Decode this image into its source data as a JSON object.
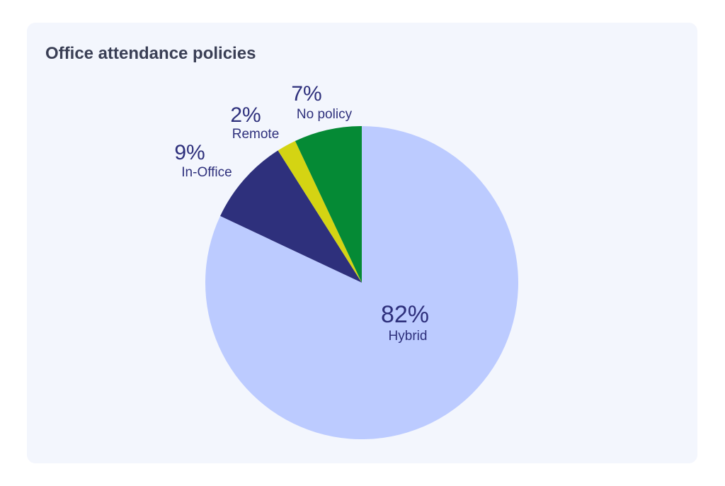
{
  "chart_data": {
    "type": "pie",
    "title": "Office attendance policies",
    "start": "12 o'clock",
    "direction": "clockwise",
    "slices": [
      {
        "label": "Hybrid",
        "value": 82,
        "value_label": "82%",
        "color": "#bccbff"
      },
      {
        "label": "In-Office",
        "value": 9,
        "value_label": "9%",
        "color": "#2e307c"
      },
      {
        "label": "Remote",
        "value": 2,
        "value_label": "2%",
        "color": "#d4d413"
      },
      {
        "label": "No policy",
        "value": 7,
        "value_label": "7%",
        "color": "#058a35"
      }
    ],
    "label_color": "#2e307c",
    "background": "#f3f6fd"
  }
}
